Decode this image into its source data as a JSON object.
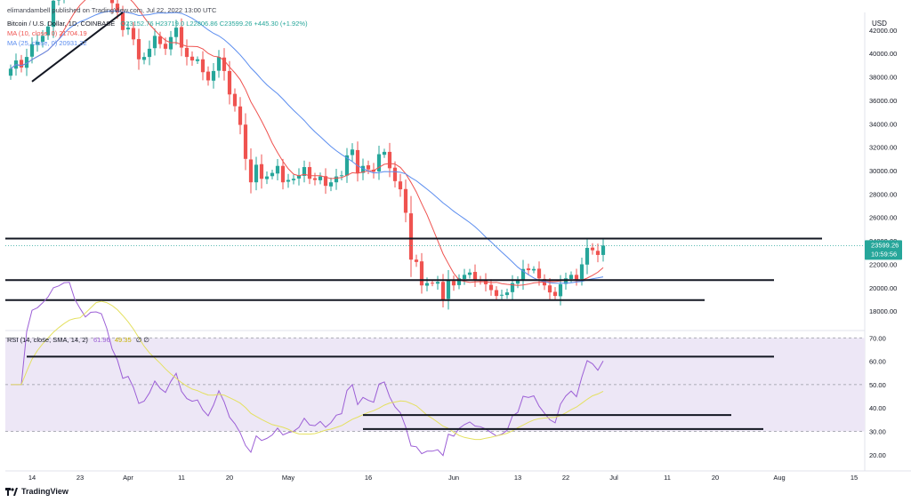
{
  "header": {
    "publisher_line": "elimandambell published on TradingView.com, Jul 22, 2022 13:00 UTC",
    "symbol_line": "Bitcoin / U.S. Dollar, 1D, COINBASE",
    "ohlc_line": "O23152.76 H23719.0 L22806.86 C23599.26 +445.30 (+1.92%)",
    "ma10_line": "MA (10, close, 0) 21704.19",
    "ma25_line": "MA (25, close, 0) 20931.32",
    "rsi_line": "RSI (14, close, SMA, 14, 2)",
    "rsi_value": "61.96",
    "rsi_ma_value": "49.35",
    "rsi_extra": "∅ ∅",
    "currency": "USD"
  },
  "price_badge": {
    "price": "23599.26",
    "countdown": "10:59:56"
  },
  "footer": {
    "brand": "TradingView"
  },
  "colors": {
    "up": "#26a69a",
    "down": "#ef5350",
    "ma10": "#ef5350",
    "ma25": "#5b8def",
    "rsi": "#9c5fd6",
    "rsi_ma": "#e4e060",
    "rsi_band": "#ede7f6",
    "line": "#131722"
  },
  "chart_data": [
    {
      "type": "candlestick",
      "title": "Bitcoin / U.S. Dollar, 1D, COINBASE",
      "ylim": [
        16500,
        43500
      ],
      "y_ticks": [
        18000,
        20000,
        22000,
        24000,
        26000,
        28000,
        30000,
        32000,
        34000,
        36000,
        38000,
        40000,
        42000
      ],
      "x_ticks": [
        {
          "label": "14",
          "date": "2022-03-14"
        },
        {
          "label": "23",
          "date": "2022-03-23"
        },
        {
          "label": "Apr",
          "date": "2022-04-01"
        },
        {
          "label": "11",
          "date": "2022-04-11"
        },
        {
          "label": "20",
          "date": "2022-04-20"
        },
        {
          "label": "May",
          "date": "2022-05-01"
        },
        {
          "label": "16",
          "date": "2022-05-16"
        },
        {
          "label": "Jun",
          "date": "2022-06-01"
        },
        {
          "label": "13",
          "date": "2022-06-13"
        },
        {
          "label": "22",
          "date": "2022-06-22"
        },
        {
          "label": "Jul",
          "date": "2022-07-01"
        },
        {
          "label": "11",
          "date": "2022-07-11"
        },
        {
          "label": "20",
          "date": "2022-07-20"
        },
        {
          "label": "Aug",
          "date": "2022-08-01"
        },
        {
          "label": "15",
          "date": "2022-08-15"
        }
      ],
      "x_range": [
        "2022-03-09",
        "2022-08-17"
      ],
      "closes": [
        38700,
        39400,
        38800,
        39700,
        40800,
        41000,
        41500,
        42300,
        44500,
        45200,
        46800,
        47100,
        46300,
        45800,
        45300,
        46400,
        46500,
        46400,
        45600,
        44300,
        43500,
        42000,
        42200,
        41200,
        39500,
        39700,
        40400,
        41500,
        40800,
        40400,
        41400,
        42200,
        40500,
        39700,
        39400,
        39500,
        38400,
        37700,
        38500,
        39700,
        38500,
        36500,
        35500,
        33900,
        31000,
        29000,
        30500,
        29300,
        29500,
        29800,
        30400,
        29000,
        29200,
        29300,
        29600,
        30300,
        29300,
        29200,
        29500,
        28700,
        29000,
        29500,
        29600,
        31300,
        31800,
        29800,
        30400,
        30100,
        29900,
        31400,
        31600,
        30200,
        29100,
        28400,
        26400,
        22400,
        22200,
        20200,
        20400,
        20400,
        20500,
        19000,
        20600,
        20200,
        20800,
        21100,
        21300,
        20700,
        20600,
        20300,
        19800,
        19300,
        19400,
        19600,
        20400,
        20600,
        21600,
        21500,
        21600,
        20800,
        20200,
        19600,
        19300,
        20300,
        20800,
        21100,
        20700,
        22000,
        23400,
        23200,
        22800,
        23599
      ],
      "ma_periods": [
        10,
        25
      ],
      "horizontal_lines": [
        {
          "y": 24200,
          "from": "2022-03-09",
          "to": "2022-08-09"
        },
        {
          "y": 20650,
          "from": "2022-03-09",
          "to": "2022-07-31"
        },
        {
          "y": 18950,
          "from": "2022-03-09",
          "to": "2022-07-18"
        }
      ],
      "trend_line": {
        "from": {
          "date": "2022-03-14",
          "y": 37600
        },
        "to": {
          "date": "2022-03-31",
          "y": 43500
        }
      }
    },
    {
      "type": "line",
      "title": "RSI (14, close, SMA, 14, 2)",
      "ylim": [
        15,
        72
      ],
      "y_ticks": [
        20,
        30,
        40,
        50,
        60,
        70
      ],
      "band": [
        30,
        70
      ],
      "midline": 50,
      "horizontal_lines": [
        {
          "y": 62,
          "from": "2022-03-13",
          "to": "2022-07-31"
        },
        {
          "y": 37,
          "from": "2022-05-15",
          "to": "2022-07-23"
        },
        {
          "y": 31,
          "from": "2022-05-15",
          "to": "2022-07-29"
        }
      ]
    }
  ]
}
